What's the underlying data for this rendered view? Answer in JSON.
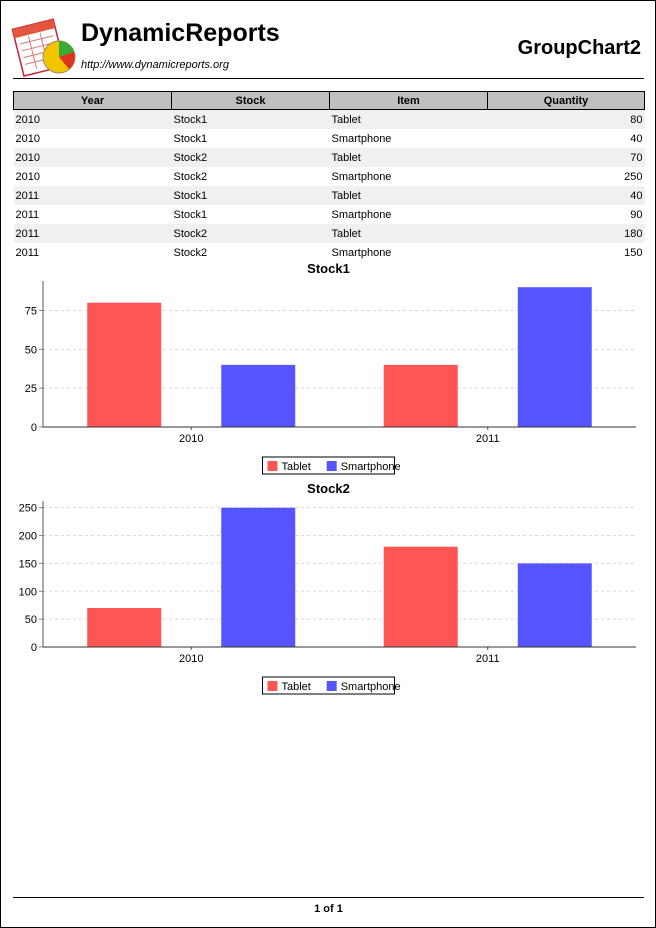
{
  "header": {
    "brand": "DynamicReports",
    "url": "http://www.dynamicreports.org",
    "report_title": "GroupChart2"
  },
  "table": {
    "columns": [
      "Year",
      "Stock",
      "Item",
      "Quantity"
    ],
    "rows": [
      [
        "2010",
        "Stock1",
        "Tablet",
        "80"
      ],
      [
        "2010",
        "Stock1",
        "Smartphone",
        "40"
      ],
      [
        "2010",
        "Stock2",
        "Tablet",
        "70"
      ],
      [
        "2010",
        "Stock2",
        "Smartphone",
        "250"
      ],
      [
        "2011",
        "Stock1",
        "Tablet",
        "40"
      ],
      [
        "2011",
        "Stock1",
        "Smartphone",
        "90"
      ],
      [
        "2011",
        "Stock2",
        "Tablet",
        "180"
      ],
      [
        "2011",
        "Stock2",
        "Smartphone",
        "150"
      ]
    ]
  },
  "colors": {
    "tablet": "#ff5555",
    "smartphone": "#5555ff",
    "header_bg": "#c0c0c0",
    "alt_row": "#f0f0f0"
  },
  "chart_data": [
    {
      "type": "bar",
      "title": "Stock1",
      "categories": [
        "2010",
        "2011"
      ],
      "series": [
        {
          "name": "Tablet",
          "values": [
            80,
            40
          ]
        },
        {
          "name": "Smartphone",
          "values": [
            40,
            90
          ]
        }
      ],
      "ylim": [
        0,
        94
      ],
      "yticks": [
        "0",
        "25",
        "50",
        "75"
      ],
      "grid": true,
      "legend": "bottom-center"
    },
    {
      "type": "bar",
      "title": "Stock2",
      "categories": [
        "2010",
        "2011"
      ],
      "series": [
        {
          "name": "Tablet",
          "values": [
            70,
            180
          ]
        },
        {
          "name": "Smartphone",
          "values": [
            250,
            150
          ]
        }
      ],
      "ylim": [
        0,
        262
      ],
      "yticks": [
        "0",
        "50",
        "100",
        "150",
        "200",
        "250"
      ],
      "grid": true,
      "legend": "bottom-center"
    }
  ],
  "footer": {
    "page_label": "1 of 1"
  }
}
